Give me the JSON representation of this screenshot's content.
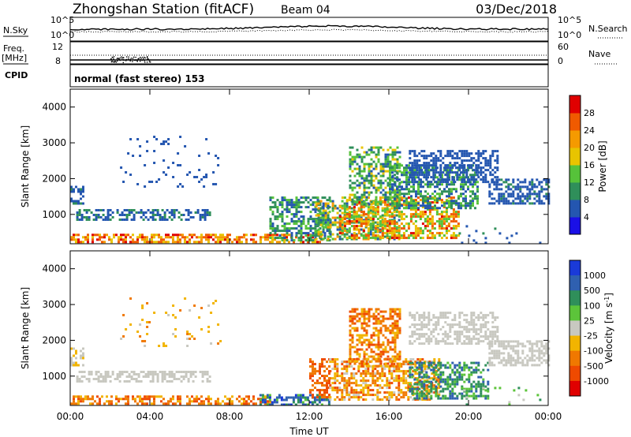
{
  "header": {
    "station": "Zhongshan Station (fitACF)",
    "beam": "Beam 04",
    "date": "03/Dec/2018"
  },
  "top_panels": {
    "nsky_label": "N.Sky",
    "nsky_ticks": [
      "10^5",
      "10^0"
    ],
    "nsearch_label": "N.Search",
    "nsearch_ticks": [
      "10^5",
      "10^0"
    ],
    "freq_label": "Freq.",
    "freq_unit": "[MHz]",
    "freq_ticks": [
      "12",
      "8"
    ],
    "nave_label": "Nave",
    "nave_ticks": [
      "60",
      "0"
    ],
    "cpid_label": "CPID",
    "cpid_text": "normal (fast stereo) 153"
  },
  "colors": {
    "power_scale": [
      "#1a10e6",
      "#2456b0",
      "#2f8f5a",
      "#56c23a",
      "#e8c400",
      "#f59a00",
      "#f05a00",
      "#e00000"
    ],
    "velocity_scale": [
      "#1a3ad8",
      "#2f60b0",
      "#2f8f5a",
      "#5cc43a",
      "#c8c8c0",
      "#f2b400",
      "#f07800",
      "#ef4a00",
      "#e00000"
    ]
  },
  "chart_data": [
    {
      "type": "heatmap",
      "name": "power",
      "ylabel": "Slant Range [km]",
      "yticks": [
        "1000",
        "2000",
        "3000",
        "4000"
      ],
      "ylim": [
        180,
        4500
      ],
      "xlim_hours": [
        0,
        24
      ],
      "colorbar_label": "Power [dB]",
      "colorbar_ticks": [
        "4",
        "8",
        "12",
        "16",
        "20",
        "24",
        "28"
      ],
      "colorbar_range": [
        0,
        32
      ],
      "regions": [
        {
          "t": [
            0,
            12.6
          ],
          "r": [
            200,
            460
          ],
          "level": [
            16,
            30
          ]
        },
        {
          "t": [
            0.3,
            7.0
          ],
          "r": [
            820,
            1150
          ],
          "level": [
            4,
            10
          ]
        },
        {
          "t": [
            0,
            0.6
          ],
          "r": [
            1300,
            1800
          ],
          "level": [
            4,
            9
          ]
        },
        {
          "t": [
            2.5,
            7.5
          ],
          "r": [
            1800,
            3200
          ],
          "level": [
            4,
            8
          ],
          "sparse": true
        },
        {
          "t": [
            10.0,
            13.0
          ],
          "r": [
            250,
            1500
          ],
          "level": [
            6,
            14
          ]
        },
        {
          "t": [
            12.3,
            16.5
          ],
          "r": [
            300,
            1400
          ],
          "level": [
            6,
            24
          ]
        },
        {
          "t": [
            13.5,
            19.5
          ],
          "r": [
            350,
            1500
          ],
          "level": [
            12,
            29
          ]
        },
        {
          "t": [
            14.0,
            16.5
          ],
          "r": [
            1300,
            2900
          ],
          "level": [
            6,
            18
          ]
        },
        {
          "t": [
            16.0,
            20.5
          ],
          "r": [
            1200,
            2400
          ],
          "level": [
            4,
            16
          ]
        },
        {
          "t": [
            17.0,
            21.5
          ],
          "r": [
            1900,
            2800
          ],
          "level": [
            4,
            8
          ]
        },
        {
          "t": [
            21.0,
            24.0
          ],
          "r": [
            1300,
            2000
          ],
          "level": [
            4,
            9
          ]
        },
        {
          "t": [
            19.5,
            24.0
          ],
          "r": [
            200,
            700
          ],
          "level": [
            4,
            9
          ],
          "sparse": true
        }
      ]
    },
    {
      "type": "heatmap",
      "name": "velocity",
      "ylabel": "Slant Range [km]",
      "yticks": [
        "1000",
        "2000",
        "3000",
        "4000"
      ],
      "ylim": [
        180,
        4500
      ],
      "xlim_hours": [
        0,
        24
      ],
      "xlabel": "Time UT",
      "xticks": [
        "00:00",
        "04:00",
        "08:00",
        "12:00",
        "16:00",
        "20:00",
        "00:00"
      ],
      "colorbar_label": "Velocity [m s^-1]",
      "colorbar_ticks": [
        "1000",
        "500",
        "100",
        "25",
        "-25",
        "-100",
        "-500",
        "-1000"
      ],
      "regions": [
        {
          "t": [
            0,
            10.0
          ],
          "r": [
            200,
            460
          ],
          "cat": [
            5,
            7
          ]
        },
        {
          "t": [
            0.3,
            7.0
          ],
          "r": [
            820,
            1150
          ],
          "cat": [
            4,
            4
          ]
        },
        {
          "t": [
            0,
            0.6
          ],
          "r": [
            1300,
            1800
          ],
          "cat": [
            4,
            5
          ]
        },
        {
          "t": [
            2.5,
            7.5
          ],
          "r": [
            1800,
            3200
          ],
          "cat": [
            4,
            6
          ],
          "sparse": true
        },
        {
          "t": [
            9.5,
            13.0
          ],
          "r": [
            200,
            500
          ],
          "cat": [
            0,
            3
          ]
        },
        {
          "t": [
            12.0,
            13.0
          ],
          "r": [
            400,
            1500
          ],
          "cat": [
            6,
            7
          ]
        },
        {
          "t": [
            13.0,
            18.5
          ],
          "r": [
            350,
            1500
          ],
          "cat": [
            4,
            7
          ]
        },
        {
          "t": [
            14.0,
            16.5
          ],
          "r": [
            1300,
            2900
          ],
          "cat": [
            5,
            7
          ]
        },
        {
          "t": [
            17.0,
            21.0
          ],
          "r": [
            400,
            1400
          ],
          "cat": [
            1,
            3
          ]
        },
        {
          "t": [
            17.0,
            21.5
          ],
          "r": [
            1900,
            2800
          ],
          "cat": [
            4,
            4
          ]
        },
        {
          "t": [
            21.0,
            24.0
          ],
          "r": [
            1300,
            2000
          ],
          "cat": [
            4,
            4
          ]
        },
        {
          "t": [
            19.5,
            24.0
          ],
          "r": [
            200,
            700
          ],
          "cat": [
            2,
            4
          ],
          "sparse": true
        }
      ]
    }
  ]
}
